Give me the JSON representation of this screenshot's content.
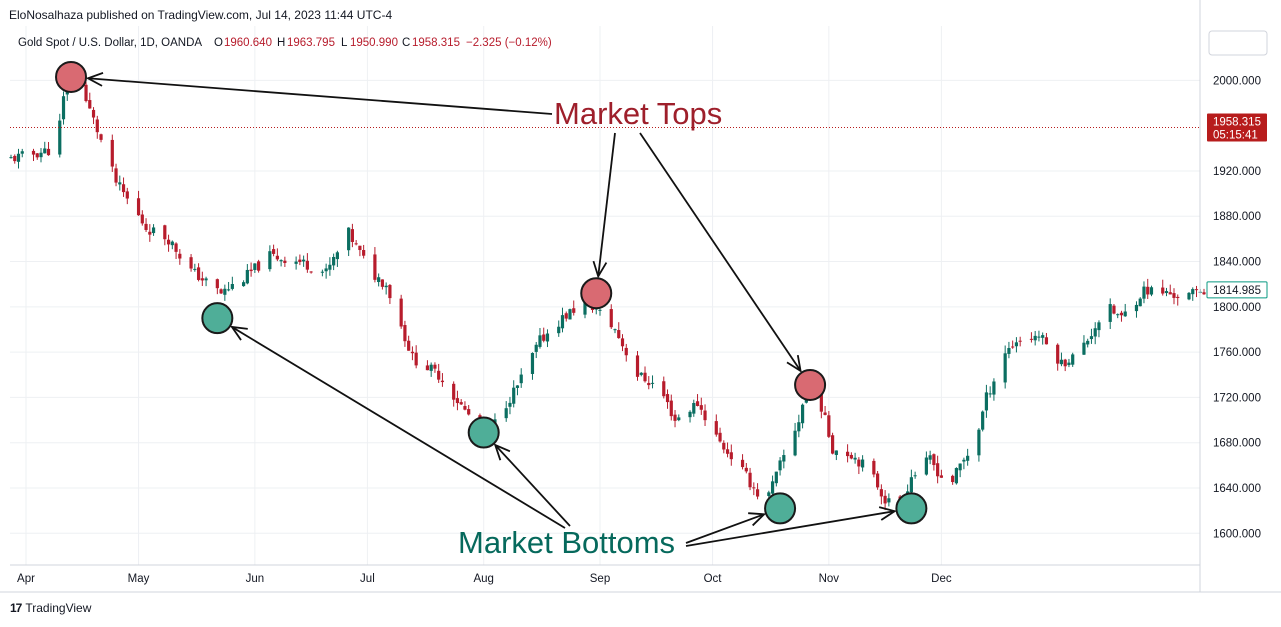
{
  "header": {
    "publisher": "EloNosalhaza published on TradingView.com, Jul 14, 2023 11:44 UTC-4"
  },
  "chart_data": {
    "type": "candlestick",
    "symbol": "Gold Spot / U.S. Dollar, 1D, OANDA",
    "ohlc_text": {
      "o_label": "O",
      "o": "1960.640",
      "h_label": "H",
      "h": "1963.795",
      "l_label": "L",
      "l": "1950.990",
      "c_label": "C",
      "c": "1958.315",
      "change": "−2.325 (−0.12%)"
    },
    "y_ticks": [
      "1600.000",
      "1640.000",
      "1680.000",
      "1720.000",
      "1760.000",
      "1800.000",
      "1840.000",
      "1880.000",
      "1920.000",
      "2000.000"
    ],
    "ylim": [
      1572,
      2048
    ],
    "x_ticks": [
      "Apr",
      "May",
      "Jun",
      "Jul",
      "Aug",
      "Sep",
      "Oct",
      "Nov",
      "Dec"
    ],
    "x_tick_dates": [
      "2023-04-01",
      "2023-05-01",
      "2023-06-01",
      "2023-07-01",
      "2023-08-01",
      "2023-09-01",
      "2023-10-01",
      "2023-11-01",
      "2023-12-01"
    ],
    "price_line": {
      "value": "1958.315",
      "countdown": "05:15:41",
      "color": "#b71c1c"
    },
    "last_label": {
      "value": "1814.985",
      "color": "#089981"
    },
    "up_color": "#0b6e61",
    "down_color": "#b71c2c",
    "anchors": [
      [
        "2023-03-28",
        1930
      ],
      [
        "2023-04-04",
        1935
      ],
      [
        "2023-04-10",
        1940
      ],
      [
        "2023-04-13",
        2005
      ],
      [
        "2023-04-17",
        1990
      ],
      [
        "2023-04-20",
        1965
      ],
      [
        "2023-04-26",
        1910
      ],
      [
        "2023-05-04",
        1870
      ],
      [
        "2023-05-10",
        1860
      ],
      [
        "2023-05-16",
        1832
      ],
      [
        "2023-05-24",
        1812
      ],
      [
        "2023-05-30",
        1825
      ],
      [
        "2023-06-06",
        1845
      ],
      [
        "2023-06-14",
        1840
      ],
      [
        "2023-06-21",
        1830
      ],
      [
        "2023-06-27",
        1865
      ],
      [
        "2023-07-03",
        1830
      ],
      [
        "2023-07-07",
        1820
      ],
      [
        "2023-07-14",
        1755
      ],
      [
        "2023-07-21",
        1740
      ],
      [
        "2023-07-28",
        1708
      ],
      [
        "2023-08-03",
        1685
      ],
      [
        "2023-08-07",
        1710
      ],
      [
        "2023-08-11",
        1730
      ],
      [
        "2023-08-17",
        1770
      ],
      [
        "2023-08-23",
        1790
      ],
      [
        "2023-08-29",
        1805
      ],
      [
        "2023-09-01",
        1798
      ],
      [
        "2023-09-06",
        1780
      ],
      [
        "2023-09-12",
        1740
      ],
      [
        "2023-09-18",
        1728
      ],
      [
        "2023-09-22",
        1700
      ],
      [
        "2023-09-28",
        1715
      ],
      [
        "2023-10-04",
        1680
      ],
      [
        "2023-10-09",
        1660
      ],
      [
        "2023-10-13",
        1640
      ],
      [
        "2023-10-16",
        1625
      ],
      [
        "2023-10-20",
        1660
      ],
      [
        "2023-10-25",
        1700
      ],
      [
        "2023-10-27",
        1728
      ],
      [
        "2023-10-31",
        1712
      ],
      [
        "2023-11-03",
        1675
      ],
      [
        "2023-11-08",
        1670
      ],
      [
        "2023-11-13",
        1655
      ],
      [
        "2023-11-17",
        1630
      ],
      [
        "2023-11-21",
        1622
      ],
      [
        "2023-11-24",
        1650
      ],
      [
        "2023-11-29",
        1665
      ],
      [
        "2023-12-04",
        1640
      ],
      [
        "2023-12-07",
        1660
      ],
      [
        "2023-12-11",
        1680
      ],
      [
        "2023-12-14",
        1720
      ],
      [
        "2023-12-19",
        1760
      ],
      [
        "2023-12-22",
        1770
      ],
      [
        "2023-12-28",
        1775
      ],
      [
        "2024-01-03",
        1750
      ],
      [
        "2024-01-08",
        1760
      ],
      [
        "2024-01-15",
        1800
      ],
      [
        "2024-01-19",
        1790
      ],
      [
        "2024-01-25",
        1815
      ],
      [
        "2024-01-31",
        1812
      ],
      [
        "2024-02-05",
        1808
      ],
      [
        "2024-02-09",
        1815
      ]
    ]
  },
  "annotations": {
    "market_tops": "Market Tops",
    "market_bottoms": "Market Bottoms",
    "tops_color": "#9e1f2b",
    "bottoms_color": "#06695c",
    "top_markers": [
      {
        "date": "2023-04-13",
        "price": 2003
      },
      {
        "date": "2023-08-31",
        "price": 1812
      },
      {
        "date": "2023-10-27",
        "price": 1731
      }
    ],
    "bottom_markers": [
      {
        "date": "2023-05-22",
        "price": 1790
      },
      {
        "date": "2023-08-01",
        "price": 1689
      },
      {
        "date": "2023-10-19",
        "price": 1622
      },
      {
        "date": "2023-11-23",
        "price": 1622
      }
    ]
  },
  "footer": {
    "brand": "TradingView",
    "logo": "tradingview-logo-icon"
  }
}
